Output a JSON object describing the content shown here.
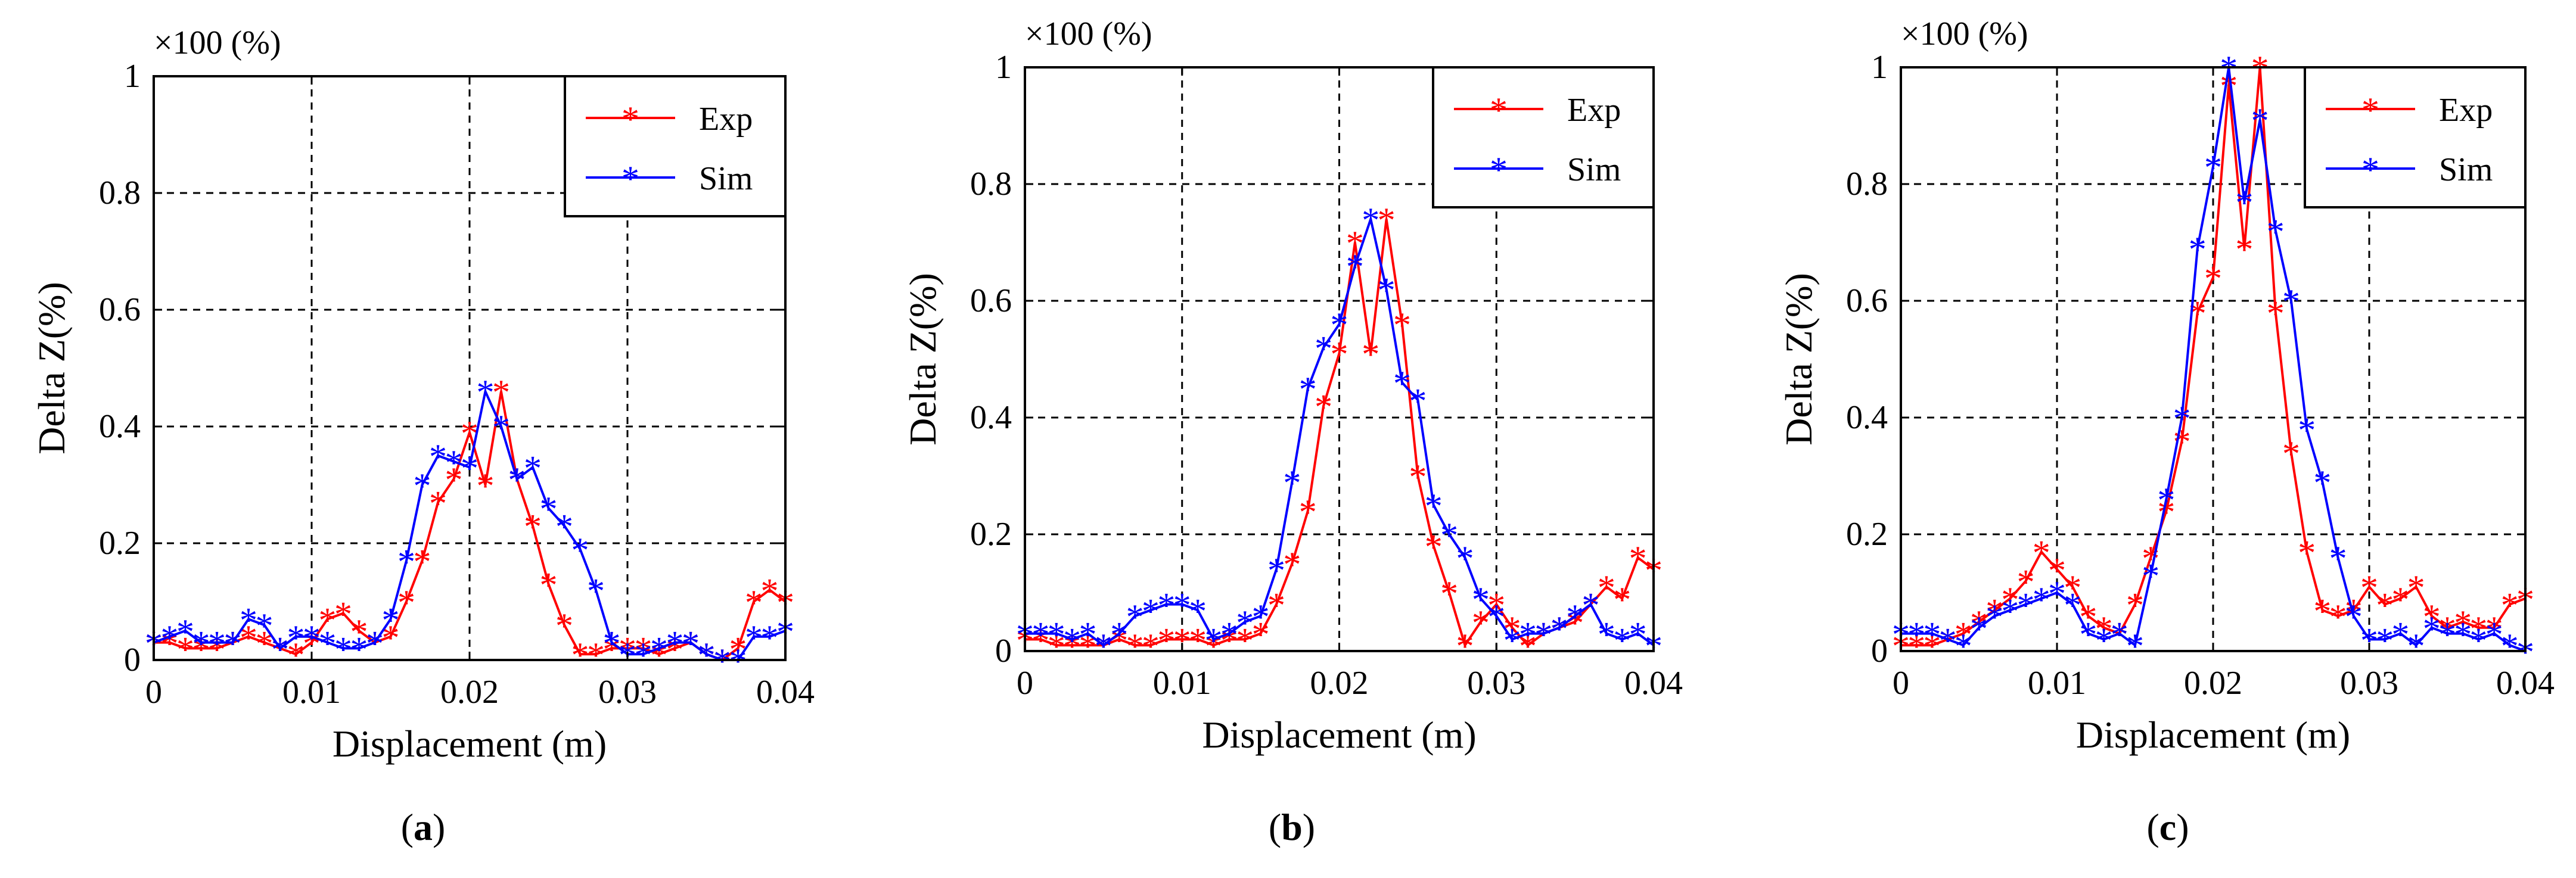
{
  "panels": [
    {
      "label": "(a)",
      "bold": "a"
    },
    {
      "label": "(b)",
      "bold": "b"
    },
    {
      "label": "(c)",
      "bold": "c"
    }
  ],
  "chart_data": [
    {
      "type": "line",
      "scale_note": "×100 (%)",
      "xlabel": "Displacement (m)",
      "ylabel": "Delta Z(%)",
      "xlim": [
        0,
        0.04
      ],
      "ylim": [
        0,
        1
      ],
      "xticks": [
        "0",
        "0.01",
        "0.02",
        "0.03",
        "0.04"
      ],
      "yticks": [
        "0",
        "0.2",
        "0.4",
        "0.6",
        "0.8",
        "1"
      ],
      "grid": true,
      "legend": "top-right",
      "series": [
        {
          "name": "Exp",
          "color": "#ff0000",
          "x": [
            0,
            0.001,
            0.002,
            0.003,
            0.004,
            0.005,
            0.006,
            0.007,
            0.008,
            0.009,
            0.01,
            0.011,
            0.012,
            0.013,
            0.014,
            0.015,
            0.016,
            0.017,
            0.018,
            0.019,
            0.02,
            0.021,
            0.022,
            0.023,
            0.024,
            0.025,
            0.026,
            0.027,
            0.028,
            0.029,
            0.03,
            0.031,
            0.032,
            0.033,
            0.034,
            0.035,
            0.036,
            0.037,
            0.038,
            0.039,
            0.04
          ],
          "y": [
            0.03,
            0.03,
            0.02,
            0.02,
            0.02,
            0.03,
            0.04,
            0.03,
            0.02,
            0.01,
            0.03,
            0.07,
            0.08,
            0.05,
            0.03,
            0.04,
            0.1,
            0.17,
            0.27,
            0.31,
            0.39,
            0.3,
            0.46,
            0.31,
            0.23,
            0.13,
            0.06,
            0.01,
            0.01,
            0.02,
            0.02,
            0.02,
            0.01,
            0.02,
            0.03,
            0.01,
            0.0,
            0.02,
            0.1,
            0.12,
            0.1
          ]
        },
        {
          "name": "Sim",
          "color": "#0000ff",
          "x": [
            0,
            0.001,
            0.002,
            0.003,
            0.004,
            0.005,
            0.006,
            0.007,
            0.008,
            0.009,
            0.01,
            0.011,
            0.012,
            0.013,
            0.014,
            0.015,
            0.016,
            0.017,
            0.018,
            0.019,
            0.02,
            0.021,
            0.022,
            0.023,
            0.024,
            0.025,
            0.026,
            0.027,
            0.028,
            0.029,
            0.03,
            0.031,
            0.032,
            0.033,
            0.034,
            0.035,
            0.036,
            0.037,
            0.038,
            0.039,
            0.04
          ],
          "y": [
            0.03,
            0.04,
            0.05,
            0.03,
            0.03,
            0.03,
            0.07,
            0.06,
            0.02,
            0.04,
            0.04,
            0.03,
            0.02,
            0.02,
            0.03,
            0.07,
            0.17,
            0.3,
            0.35,
            0.34,
            0.33,
            0.46,
            0.4,
            0.31,
            0.33,
            0.26,
            0.23,
            0.19,
            0.12,
            0.03,
            0.01,
            0.01,
            0.02,
            0.03,
            0.03,
            0.01,
            0.0,
            0.0,
            0.04,
            0.04,
            0.05
          ]
        }
      ]
    },
    {
      "type": "line",
      "scale_note": "×100 (%)",
      "xlabel": "Displacement (m)",
      "ylabel": "Delta Z(%)",
      "xlim": [
        0,
        0.04
      ],
      "ylim": [
        0,
        1
      ],
      "xticks": [
        "0",
        "0.01",
        "0.02",
        "0.03",
        "0.04"
      ],
      "yticks": [
        "0",
        "0.2",
        "0.4",
        "0.6",
        "0.8",
        "1"
      ],
      "grid": true,
      "legend": "top-right",
      "series": [
        {
          "name": "Exp",
          "color": "#ff0000",
          "x": [
            0,
            0.001,
            0.002,
            0.003,
            0.004,
            0.005,
            0.006,
            0.007,
            0.008,
            0.009,
            0.01,
            0.011,
            0.012,
            0.013,
            0.014,
            0.015,
            0.016,
            0.017,
            0.018,
            0.019,
            0.02,
            0.021,
            0.022,
            0.023,
            0.024,
            0.025,
            0.026,
            0.027,
            0.028,
            0.029,
            0.03,
            0.031,
            0.032,
            0.033,
            0.034,
            0.035,
            0.036,
            0.037,
            0.038,
            0.039,
            0.04
          ],
          "y": [
            0.02,
            0.02,
            0.01,
            0.01,
            0.01,
            0.01,
            0.02,
            0.01,
            0.01,
            0.02,
            0.02,
            0.02,
            0.01,
            0.02,
            0.02,
            0.03,
            0.08,
            0.15,
            0.24,
            0.42,
            0.51,
            0.7,
            0.51,
            0.74,
            0.56,
            0.3,
            0.18,
            0.1,
            0.01,
            0.05,
            0.08,
            0.04,
            0.01,
            0.03,
            0.04,
            0.05,
            0.08,
            0.11,
            0.09,
            0.16,
            0.14
          ]
        },
        {
          "name": "Sim",
          "color": "#0000ff",
          "x": [
            0,
            0.001,
            0.002,
            0.003,
            0.004,
            0.005,
            0.006,
            0.007,
            0.008,
            0.009,
            0.01,
            0.011,
            0.012,
            0.013,
            0.014,
            0.015,
            0.016,
            0.017,
            0.018,
            0.019,
            0.02,
            0.021,
            0.022,
            0.023,
            0.024,
            0.025,
            0.026,
            0.027,
            0.028,
            0.029,
            0.03,
            0.031,
            0.032,
            0.033,
            0.034,
            0.035,
            0.036,
            0.037,
            0.038,
            0.039,
            0.04
          ],
          "y": [
            0.03,
            0.03,
            0.03,
            0.02,
            0.03,
            0.01,
            0.03,
            0.06,
            0.07,
            0.08,
            0.08,
            0.07,
            0.02,
            0.03,
            0.05,
            0.06,
            0.14,
            0.29,
            0.45,
            0.52,
            0.56,
            0.66,
            0.74,
            0.62,
            0.46,
            0.43,
            0.25,
            0.2,
            0.16,
            0.09,
            0.06,
            0.02,
            0.03,
            0.03,
            0.04,
            0.06,
            0.08,
            0.03,
            0.02,
            0.03,
            0.01
          ]
        }
      ]
    },
    {
      "type": "line",
      "scale_note": "×100 (%)",
      "xlabel": "Displacement (m)",
      "ylabel": "Delta Z(%)",
      "xlim": [
        0,
        0.04
      ],
      "ylim": [
        0,
        1
      ],
      "xticks": [
        "0",
        "0.01",
        "0.02",
        "0.03",
        "0.04"
      ],
      "yticks": [
        "0",
        "0.2",
        "0.4",
        "0.6",
        "0.8",
        "1"
      ],
      "grid": true,
      "legend": "top-right",
      "series": [
        {
          "name": "Exp",
          "color": "#ff0000",
          "x": [
            0,
            0.001,
            0.002,
            0.003,
            0.004,
            0.005,
            0.006,
            0.007,
            0.008,
            0.009,
            0.01,
            0.011,
            0.012,
            0.013,
            0.014,
            0.015,
            0.016,
            0.017,
            0.018,
            0.019,
            0.02,
            0.021,
            0.022,
            0.023,
            0.024,
            0.025,
            0.026,
            0.027,
            0.028,
            0.029,
            0.03,
            0.031,
            0.032,
            0.033,
            0.034,
            0.035,
            0.036,
            0.037,
            0.038,
            0.039,
            0.04
          ],
          "y": [
            0.01,
            0.01,
            0.01,
            0.02,
            0.03,
            0.05,
            0.07,
            0.09,
            0.12,
            0.17,
            0.14,
            0.11,
            0.06,
            0.04,
            0.03,
            0.08,
            0.16,
            0.24,
            0.36,
            0.58,
            0.64,
            0.97,
            0.69,
            1.0,
            0.58,
            0.34,
            0.17,
            0.07,
            0.06,
            0.07,
            0.11,
            0.08,
            0.09,
            0.11,
            0.06,
            0.04,
            0.05,
            0.04,
            0.04,
            0.08,
            0.09
          ]
        },
        {
          "name": "Sim",
          "color": "#0000ff",
          "x": [
            0,
            0.001,
            0.002,
            0.003,
            0.004,
            0.005,
            0.006,
            0.007,
            0.008,
            0.009,
            0.01,
            0.011,
            0.012,
            0.013,
            0.014,
            0.015,
            0.016,
            0.017,
            0.018,
            0.019,
            0.02,
            0.021,
            0.022,
            0.023,
            0.024,
            0.025,
            0.026,
            0.027,
            0.028,
            0.029,
            0.03,
            0.031,
            0.032,
            0.033,
            0.034,
            0.035,
            0.036,
            0.037,
            0.038,
            0.039,
            0.04
          ],
          "y": [
            0.03,
            0.03,
            0.03,
            0.02,
            0.01,
            0.04,
            0.06,
            0.07,
            0.08,
            0.09,
            0.1,
            0.08,
            0.03,
            0.02,
            0.03,
            0.01,
            0.13,
            0.26,
            0.4,
            0.69,
            0.83,
            1.0,
            0.77,
            0.91,
            0.72,
            0.6,
            0.38,
            0.29,
            0.16,
            0.06,
            0.02,
            0.02,
            0.03,
            0.01,
            0.04,
            0.03,
            0.03,
            0.02,
            0.03,
            0.01,
            0.0
          ]
        }
      ]
    }
  ]
}
